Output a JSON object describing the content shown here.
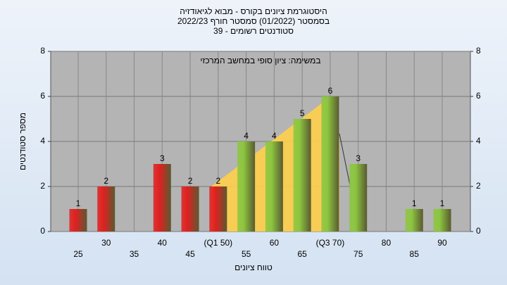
{
  "chart_data": {
    "type": "bar",
    "title": "היסטוגרמת ציונים בקורס - מבוא לגיאודזיה",
    "subtitle": "בסמסטר  (01/2022)  סמסטר חורף 2022/23",
    "subtitle2": "סטודנטים רשומים - 39",
    "annotation": "במשימה: ציון סופי במחשב המרכזי",
    "x_label": "טווח ציונים",
    "y_label": "מספר סטודנטים",
    "categories": [
      "25",
      "30",
      "35",
      "40",
      "45",
      "(Q1 50)",
      "55",
      "60",
      "65",
      "(Q3 70)",
      "75",
      "80",
      "85",
      "90"
    ],
    "values": [
      1,
      2,
      null,
      3,
      2,
      2,
      4,
      4,
      5,
      6,
      3,
      null,
      1,
      1
    ],
    "colors": [
      "#e02020",
      "#e02020",
      "#e02020",
      "#e02020",
      "#e02020",
      "#e02020",
      "#8cc63f",
      "#8cc63f",
      "#8cc63f",
      "#8cc63f",
      "#8cc63f",
      "#8cc63f",
      "#8cc63f",
      "#8cc63f"
    ],
    "ylim": [
      0,
      8
    ],
    "yticks": [
      0,
      2,
      4,
      6,
      8
    ],
    "y2lim": [
      0,
      8
    ],
    "y2ticks": [
      0,
      2,
      4,
      6,
      8
    ],
    "grid": true
  }
}
